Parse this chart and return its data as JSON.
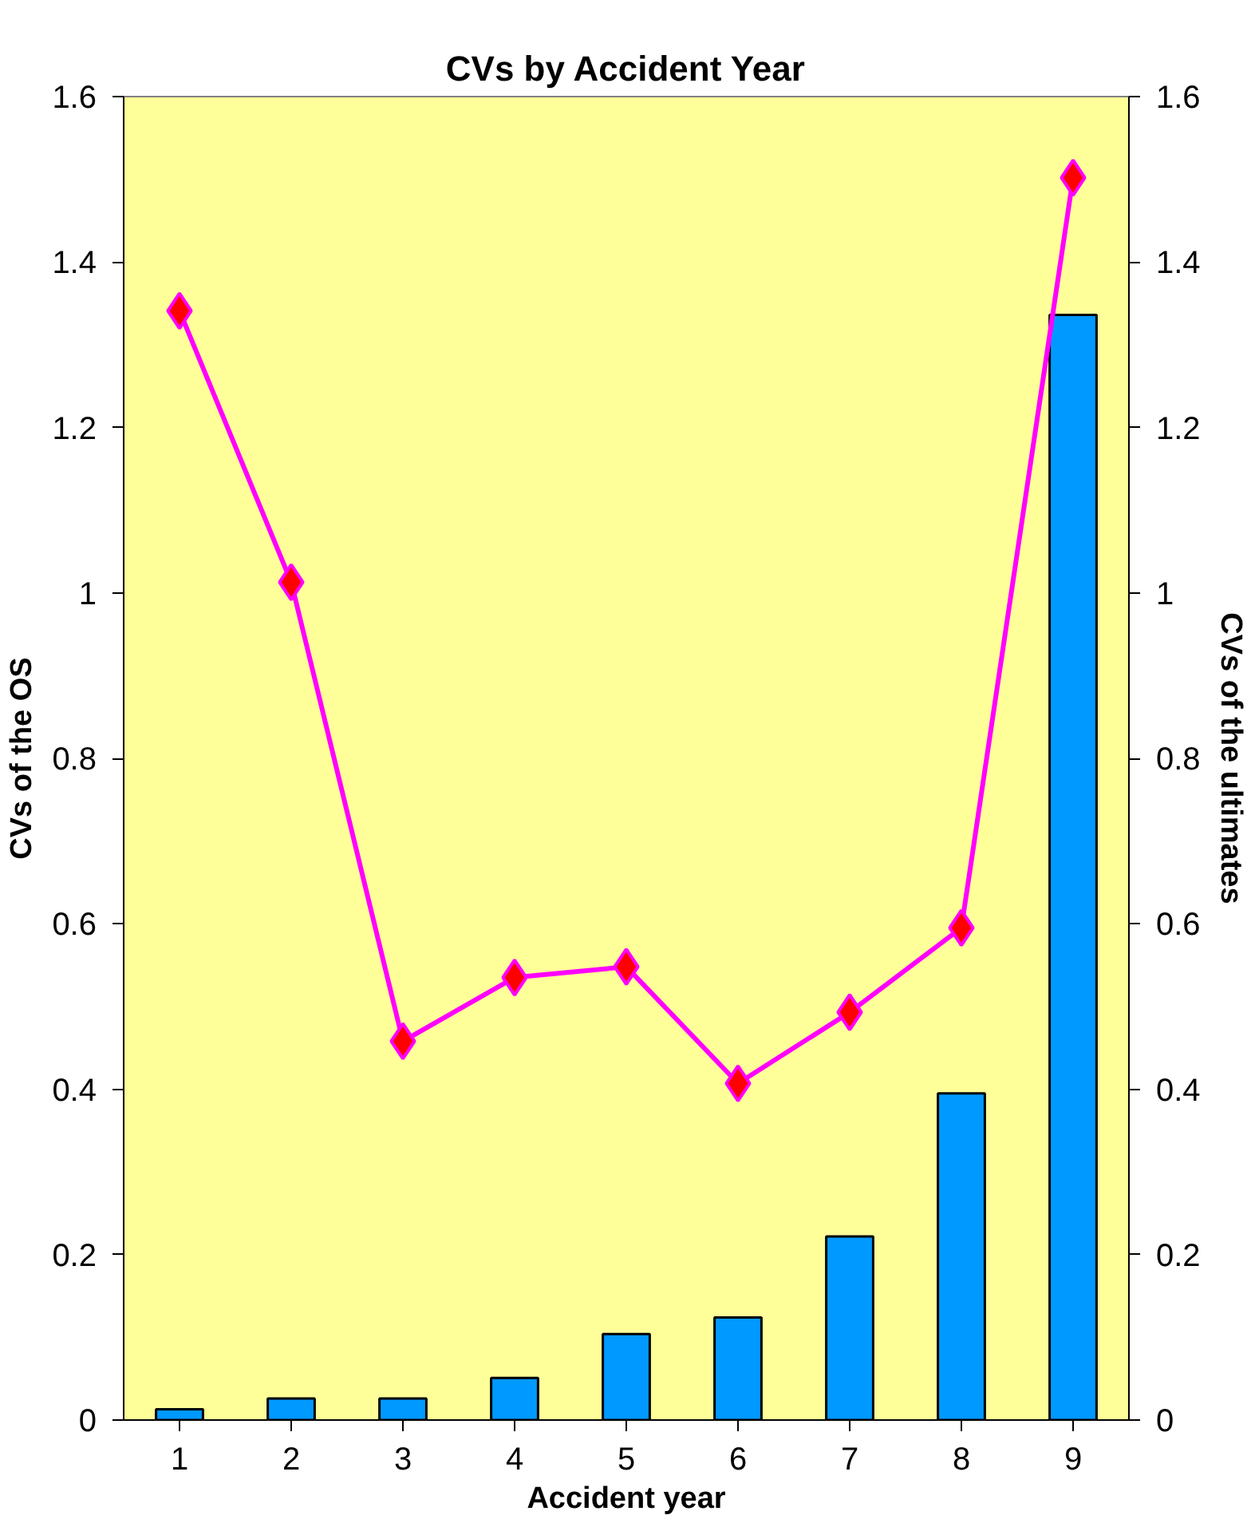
{
  "chart_data": {
    "type": "bar",
    "title": "CVs by Accident Year",
    "xlabel": "Accident year",
    "ylabel": "CVs of the OS",
    "y2label": "CVs of the ultimates",
    "categories": [
      "1",
      "2",
      "3",
      "4",
      "5",
      "6",
      "7",
      "8",
      "9"
    ],
    "series": [
      {
        "color": "#0099ff",
        "values": [
          0.013,
          0.026,
          0.026,
          0.051,
          0.104,
          0.124,
          0.222,
          0.395,
          1.336
        ]
      },
      {
        "type": "line",
        "axis": "y2",
        "color": "#ff00ff",
        "marker": "diamond",
        "values": [
          1.341,
          1.013,
          0.458,
          0.535,
          0.548,
          0.407,
          0.493,
          0.595,
          1.502
        ]
      }
    ],
    "ylim": [
      0,
      1.6
    ],
    "yticks": [
      0,
      0.2,
      0.4,
      0.6,
      0.8,
      1,
      1.2,
      1.4,
      1.6
    ],
    "y2lim": [
      0,
      1.6
    ],
    "y2ticks": [
      0,
      0.2,
      0.4,
      0.6,
      0.8,
      1,
      1.2,
      1.4,
      1.6
    ]
  }
}
